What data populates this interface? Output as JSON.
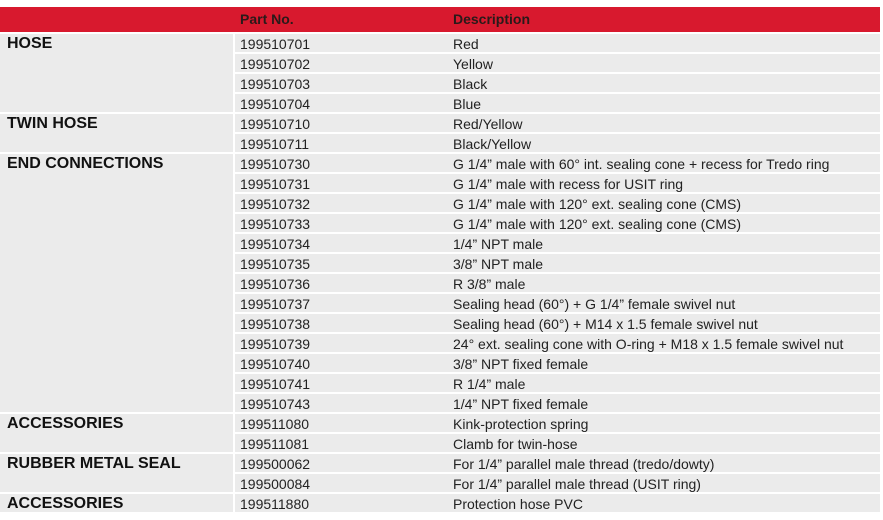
{
  "table": {
    "header": [
      "Part No.",
      "Description"
    ],
    "groups": [
      {
        "category": "HOSE",
        "rows": [
          [
            "199510701",
            "Red"
          ],
          [
            "199510702",
            "Yellow"
          ],
          [
            "199510703",
            "Black"
          ],
          [
            "199510704",
            "Blue"
          ]
        ]
      },
      {
        "category": "TWIN HOSE",
        "rows": [
          [
            "199510710",
            "Red/Yellow"
          ],
          [
            "199510711",
            "Black/Yellow"
          ]
        ]
      },
      {
        "category": "END CONNECTIONS",
        "rows": [
          [
            "199510730",
            "G 1/4” male with 60° int. sealing cone + recess for Tredo ring"
          ],
          [
            "199510731",
            "G 1/4” male with recess for USIT ring"
          ],
          [
            "199510732",
            "G 1/4” male with 120° ext. sealing cone (CMS)"
          ],
          [
            "199510733",
            "G 1/4” male with 120° ext. sealing cone (CMS)"
          ],
          [
            "199510734",
            "1/4” NPT male"
          ],
          [
            "199510735",
            "3/8” NPT male"
          ],
          [
            "199510736",
            "R 3/8” male"
          ],
          [
            "199510737",
            "Sealing head (60°) + G 1/4” female swivel nut"
          ],
          [
            "199510738",
            "Sealing head (60°) + M14 x 1.5 female swivel nut"
          ],
          [
            "199510739",
            "24° ext. sealing cone with O-ring + M18 x 1.5 female swivel nut"
          ],
          [
            "199510740",
            "3/8” NPT fixed female"
          ],
          [
            "199510741",
            "R 1/4” male"
          ],
          [
            "199510743",
            "1/4” NPT fixed female"
          ]
        ]
      },
      {
        "category": "ACCESSORIES",
        "rows": [
          [
            "199511080",
            "Kink-protection spring"
          ],
          [
            "199511081",
            "Clamb for twin-hose"
          ]
        ]
      },
      {
        "category": "RUBBER METAL SEAL",
        "rows": [
          [
            "199500062",
            "For 1/4” parallel male thread (tredo/dowty)"
          ],
          [
            "199500084",
            "For 1/4” parallel male thread (USIT ring)"
          ]
        ]
      },
      {
        "category": "ACCESSORIES",
        "rows": [
          [
            "199511880",
            "Protection hose PVC"
          ]
        ]
      }
    ]
  }
}
